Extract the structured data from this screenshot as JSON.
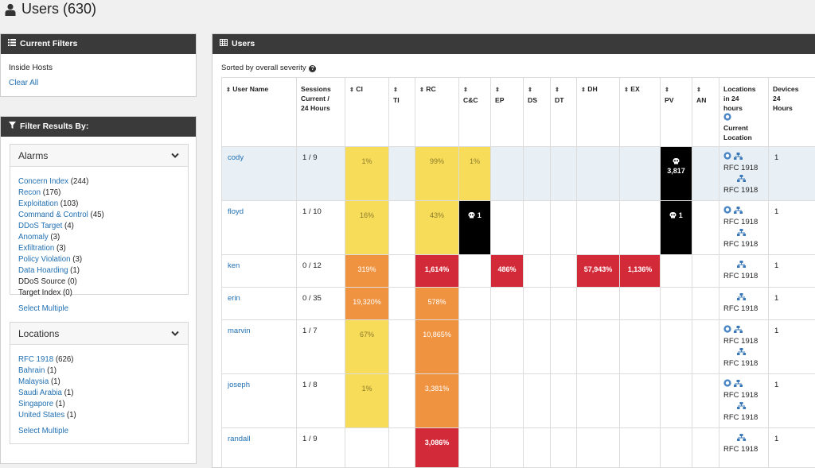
{
  "page": {
    "title": "Users (630)"
  },
  "filters_panel": {
    "title": "Current Filters",
    "inside": "Inside Hosts",
    "clear": "Clear All"
  },
  "results_panel": {
    "title": "Filter Results By:",
    "alarms": {
      "label": "Alarms",
      "items": [
        {
          "name": "Concern Index",
          "count": "(244)",
          "link": true
        },
        {
          "name": "Recon",
          "count": "(176)",
          "link": true
        },
        {
          "name": "Exploitation",
          "count": "(103)",
          "link": true
        },
        {
          "name": "Command & Control",
          "count": "(45)",
          "link": true
        },
        {
          "name": "DDoS Target",
          "count": "(4)",
          "link": true
        },
        {
          "name": "Anomaly",
          "count": "(3)",
          "link": true
        },
        {
          "name": "Exfiltration",
          "count": "(3)",
          "link": true
        },
        {
          "name": "Policy Violation",
          "count": "(3)",
          "link": true
        },
        {
          "name": "Data Hoarding",
          "count": "(1)",
          "link": true
        },
        {
          "name": "DDoS Source",
          "count": "(0)",
          "link": false
        },
        {
          "name": "Target Index",
          "count": "(0)",
          "link": false
        }
      ],
      "select_multiple": "Select Multiple"
    },
    "locations": {
      "label": "Locations",
      "items": [
        {
          "name": "RFC 1918",
          "count": "(626)"
        },
        {
          "name": "Bahrain",
          "count": "(1)"
        },
        {
          "name": "Malaysia",
          "count": "(1)"
        },
        {
          "name": "Saudi Arabia",
          "count": "(1)"
        },
        {
          "name": "Singapore",
          "count": "(1)"
        },
        {
          "name": "United States",
          "count": "(1)"
        }
      ],
      "select_multiple": "Select Multiple"
    }
  },
  "users_panel": {
    "title": "Users",
    "sorted_by": "Sorted by overall severity",
    "columns": {
      "user_name": "User Name",
      "sessions": [
        "Sessions",
        "Current /",
        "24 Hours"
      ],
      "ci": "CI",
      "ti": "TI",
      "rc": "RC",
      "cc": "C&C",
      "ep": "EP",
      "ds": "DS",
      "dt": "DT",
      "dh": "DH",
      "ex": "EX",
      "pv": "PV",
      "an": "AN",
      "locations": [
        "Locations",
        "in 24",
        "hours"
      ],
      "current_location": [
        "Current",
        "Location"
      ],
      "devices": [
        "Devices",
        "24",
        "Hours"
      ]
    },
    "rows": [
      {
        "name": "cody",
        "sessions": "1 / 9",
        "ci": "1%",
        "rc": "99%",
        "cc": "1%",
        "pv": "3,817",
        "loc1": "RFC 1918",
        "loc2": "RFC 1918",
        "devices": "1"
      },
      {
        "name": "floyd",
        "sessions": "1 / 10",
        "ci": "16%",
        "rc": "43%",
        "cc": "1",
        "pv": "1",
        "loc1": "RFC 1918",
        "loc2": "RFC 1918",
        "devices": "1"
      },
      {
        "name": "ken",
        "sessions": "0 / 12",
        "ci": "319%",
        "rc": "1,614%",
        "ep": "486%",
        "dh": "57,943%",
        "ex": "1,136%",
        "loc1": "RFC 1918",
        "devices": "1"
      },
      {
        "name": "erin",
        "sessions": "0 / 35",
        "ci": "19,320%",
        "rc": "578%",
        "loc1": "RFC 1918",
        "devices": "1"
      },
      {
        "name": "marvin",
        "sessions": "1 / 7",
        "ci": "67%",
        "rc": "10,865%",
        "loc1": "RFC 1918",
        "loc2": "RFC 1918",
        "devices": "1"
      },
      {
        "name": "joseph",
        "sessions": "1 / 8",
        "ci": "1%",
        "rc": "3,381%",
        "loc1": "RFC 1918",
        "loc2": "RFC 1918",
        "devices": "1"
      },
      {
        "name": "randall",
        "sessions": "1 / 9",
        "rc": "3,086%",
        "loc1": "RFC 1918",
        "devices": "1"
      }
    ]
  },
  "colors": {
    "yellow": "#f7dc5a",
    "orange": "#ef9340",
    "red": "#d32a3a",
    "black": "#000000",
    "link": "#1f6fb2",
    "header": "#3a3a3a"
  }
}
